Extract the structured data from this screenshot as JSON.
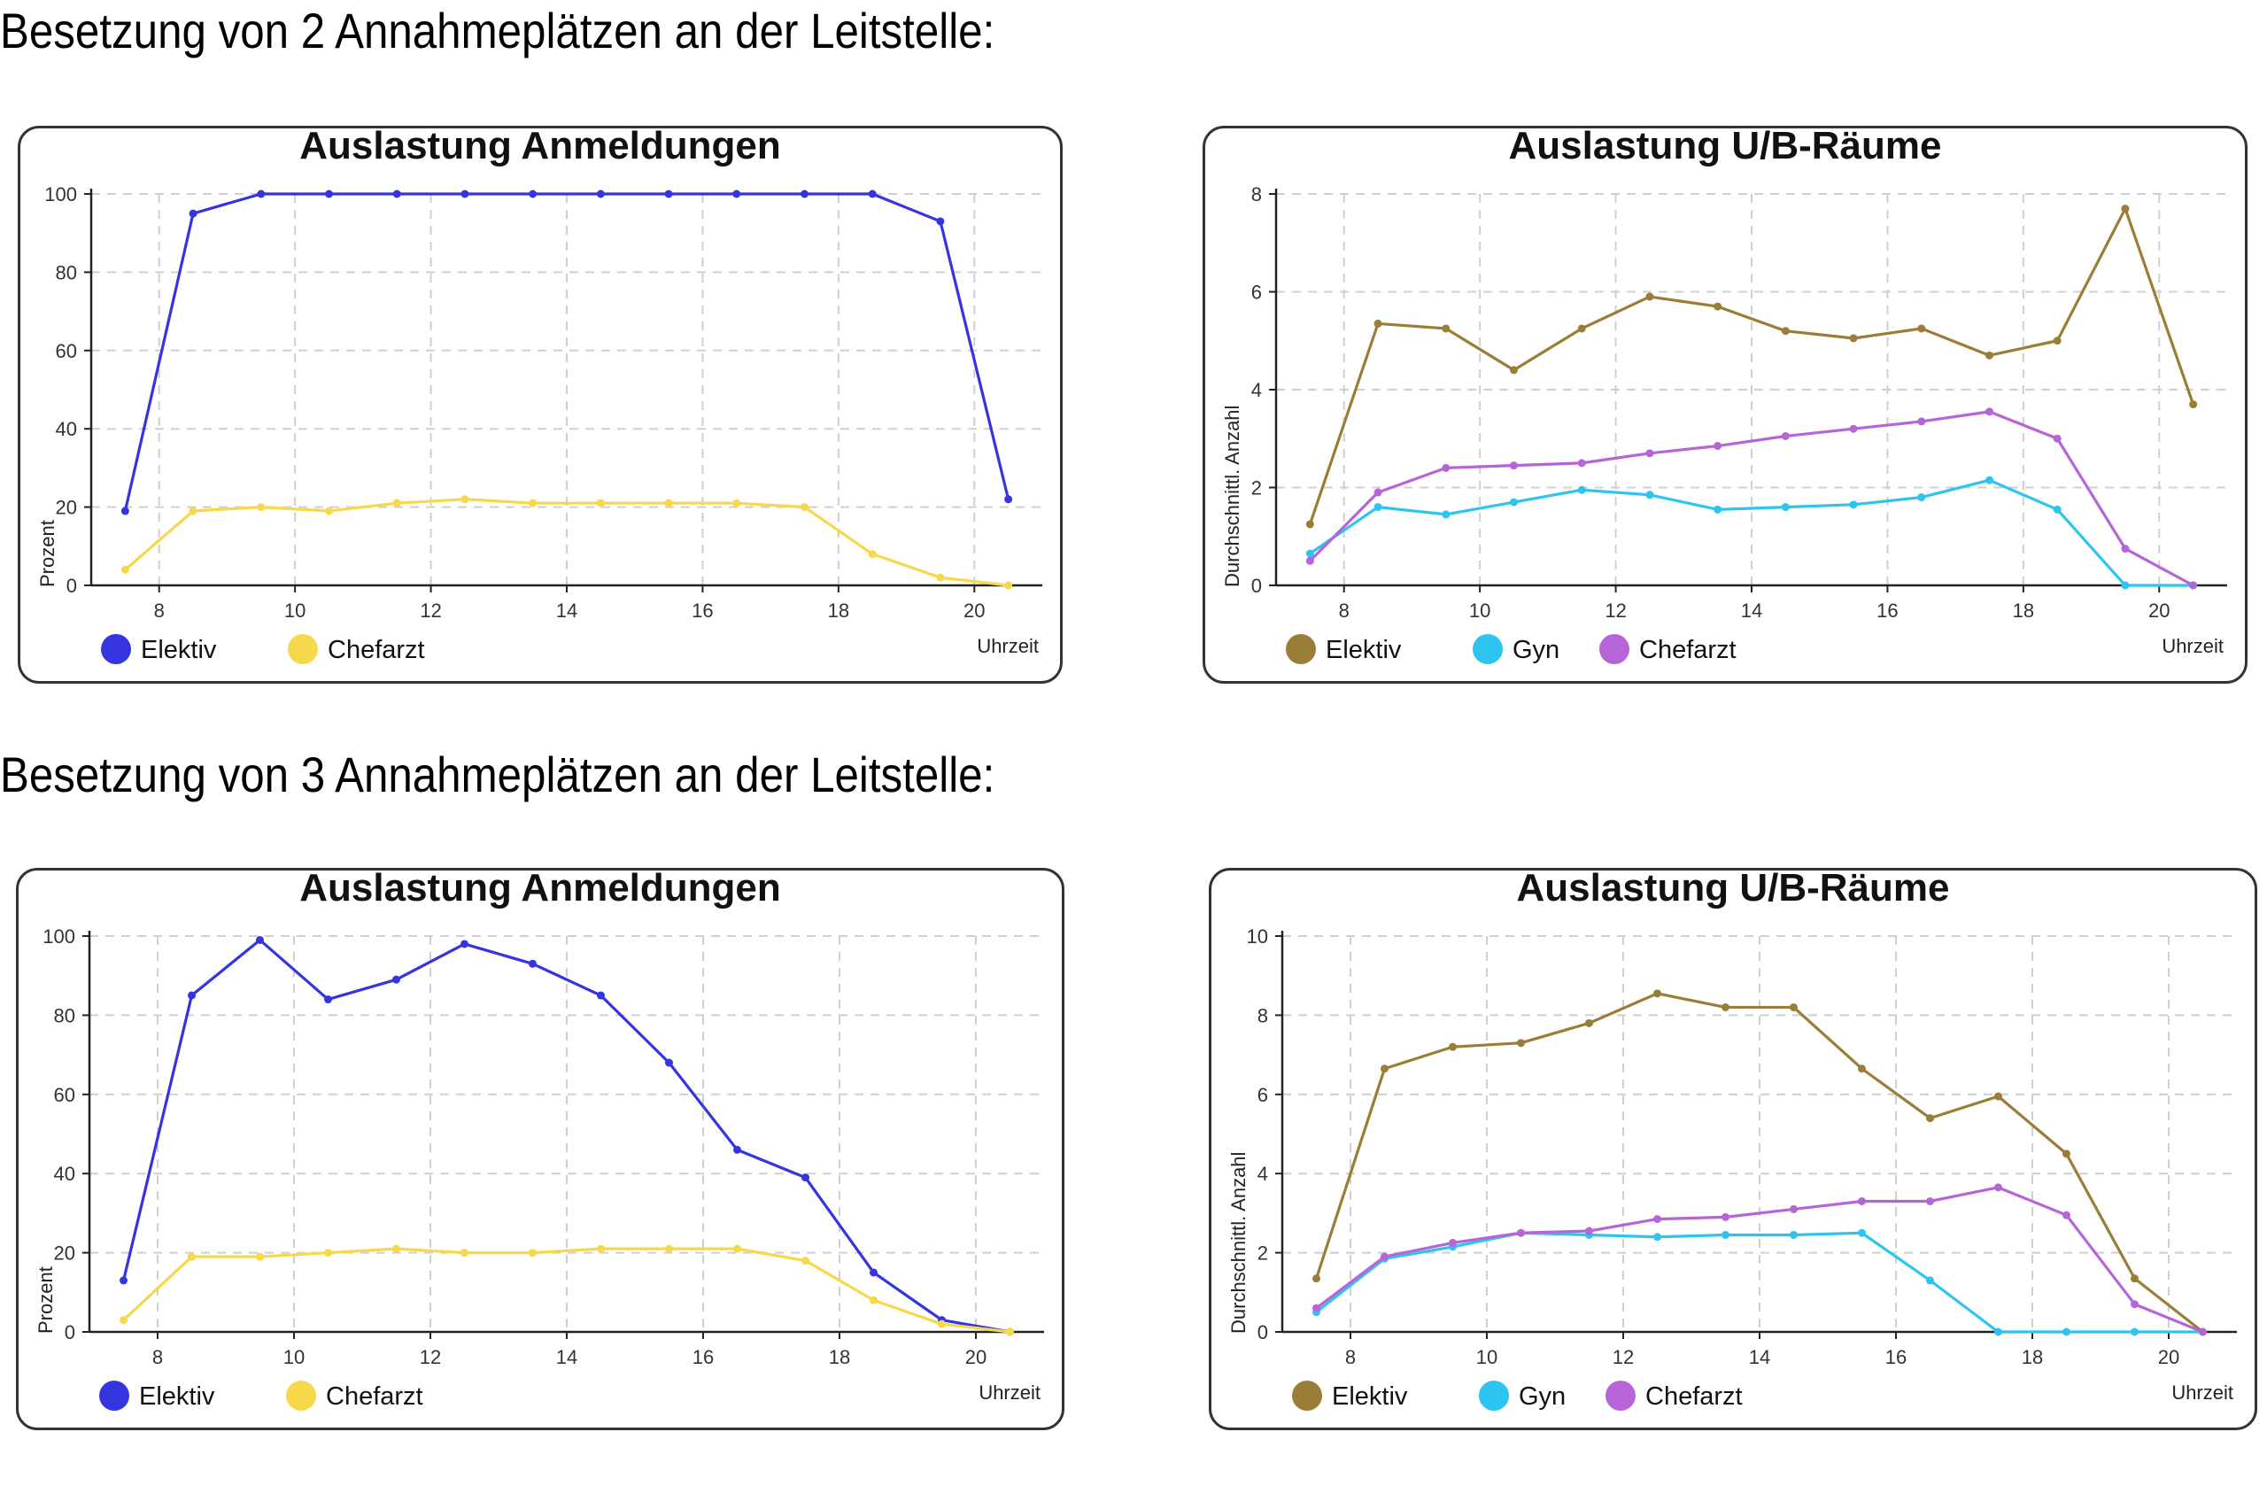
{
  "headings": {
    "h1": "Besetzung von 2 Annahmeplätzen an der Leitstelle:",
    "h2": "Besetzung von 3 Annahmeplätzen an der Leitstelle:"
  },
  "chart_data": [
    {
      "type": "line",
      "title": "Auslastung Anmeldungen",
      "xlabel": "Uhrzeit",
      "ylabel": "Prozent",
      "xlim": [
        7,
        21
      ],
      "ylim": [
        0,
        100
      ],
      "xticks": [
        8,
        10,
        12,
        14,
        16,
        18,
        20
      ],
      "yticks": [
        0,
        20,
        40,
        60,
        80,
        100
      ],
      "grid": true,
      "legend": "bottom-left",
      "series": [
        {
          "name": "Elektiv",
          "color": "#3535e0",
          "x": [
            7.5,
            8.5,
            9.5,
            10.5,
            11.5,
            12.5,
            13.5,
            14.5,
            15.5,
            16.5,
            17.5,
            18.5,
            19.5,
            20.5
          ],
          "y": [
            19,
            95,
            100,
            100,
            100,
            100,
            100,
            100,
            100,
            100,
            100,
            100,
            93,
            22
          ]
        },
        {
          "name": "Chefarzt",
          "color": "#f7d84a",
          "x": [
            7.5,
            8.5,
            9.5,
            10.5,
            11.5,
            12.5,
            13.5,
            14.5,
            15.5,
            16.5,
            17.5,
            18.5,
            19.5,
            20.5
          ],
          "y": [
            4,
            19,
            20,
            19,
            21,
            22,
            21,
            21,
            21,
            21,
            20,
            8,
            2,
            0
          ]
        }
      ]
    },
    {
      "type": "line",
      "title": "Auslastung U/B-Räume",
      "xlabel": "Uhrzeit",
      "ylabel": "Durchschnittl. Anzahl",
      "xlim": [
        7,
        21
      ],
      "ylim": [
        0,
        8
      ],
      "xticks": [
        8,
        10,
        12,
        14,
        16,
        18,
        20
      ],
      "yticks": [
        0,
        2,
        4,
        6,
        8
      ],
      "grid": true,
      "legend": "bottom-left",
      "series": [
        {
          "name": "Elektiv",
          "color": "#9a7d36",
          "x": [
            7.5,
            8.5,
            9.5,
            10.5,
            11.5,
            12.5,
            13.5,
            14.5,
            15.5,
            16.5,
            17.5,
            18.5,
            19.5,
            20.5
          ],
          "y": [
            1.25,
            5.35,
            5.25,
            4.4,
            5.25,
            5.9,
            5.7,
            5.2,
            5.05,
            5.25,
            4.7,
            5.0,
            7.7,
            3.7
          ]
        },
        {
          "name": "Gyn",
          "color": "#2ec4f0",
          "x": [
            7.5,
            8.5,
            9.5,
            10.5,
            11.5,
            12.5,
            13.5,
            14.5,
            15.5,
            16.5,
            17.5,
            18.5,
            19.5,
            20.5
          ],
          "y": [
            0.65,
            1.6,
            1.45,
            1.7,
            1.95,
            1.85,
            1.55,
            1.6,
            1.65,
            1.8,
            2.15,
            1.55,
            0,
            0
          ]
        },
        {
          "name": "Chefarzt",
          "color": "#b565d8",
          "x": [
            7.5,
            8.5,
            9.5,
            10.5,
            11.5,
            12.5,
            13.5,
            14.5,
            15.5,
            16.5,
            17.5,
            18.5,
            19.5,
            20.5
          ],
          "y": [
            0.5,
            1.9,
            2.4,
            2.45,
            2.5,
            2.7,
            2.85,
            3.05,
            3.2,
            3.35,
            3.55,
            3.0,
            0.75,
            0
          ]
        }
      ]
    },
    {
      "type": "line",
      "title": "Auslastung Anmeldungen",
      "xlabel": "Uhrzeit",
      "ylabel": "Prozent",
      "xlim": [
        7,
        21
      ],
      "ylim": [
        0,
        100
      ],
      "xticks": [
        8,
        10,
        12,
        14,
        16,
        18,
        20
      ],
      "yticks": [
        0,
        20,
        40,
        60,
        80,
        100
      ],
      "grid": true,
      "legend": "bottom-left",
      "series": [
        {
          "name": "Elektiv",
          "color": "#3535e0",
          "x": [
            7.5,
            8.5,
            9.5,
            10.5,
            11.5,
            12.5,
            13.5,
            14.5,
            15.5,
            16.5,
            17.5,
            18.5,
            19.5,
            20.5
          ],
          "y": [
            13,
            85,
            99,
            84,
            89,
            98,
            93,
            85,
            68,
            46,
            39,
            15,
            3,
            0
          ]
        },
        {
          "name": "Chefarzt",
          "color": "#f7d84a",
          "x": [
            7.5,
            8.5,
            9.5,
            10.5,
            11.5,
            12.5,
            13.5,
            14.5,
            15.5,
            16.5,
            17.5,
            18.5,
            19.5,
            20.5
          ],
          "y": [
            3,
            19,
            19,
            20,
            21,
            20,
            20,
            21,
            21,
            21,
            18,
            8,
            2,
            0
          ]
        }
      ]
    },
    {
      "type": "line",
      "title": "Auslastung U/B-Räume",
      "xlabel": "Uhrzeit",
      "ylabel": "Durchschnittl. Anzahl",
      "xlim": [
        7,
        21
      ],
      "ylim": [
        0,
        10
      ],
      "xticks": [
        8,
        10,
        12,
        14,
        16,
        18,
        20
      ],
      "yticks": [
        0,
        2,
        4,
        6,
        8,
        10
      ],
      "grid": true,
      "legend": "bottom-left",
      "series": [
        {
          "name": "Elektiv",
          "color": "#9a7d36",
          "x": [
            7.5,
            8.5,
            9.5,
            10.5,
            11.5,
            12.5,
            13.5,
            14.5,
            15.5,
            16.5,
            17.5,
            18.5,
            19.5,
            20.5
          ],
          "y": [
            1.35,
            6.65,
            7.2,
            7.3,
            7.8,
            8.55,
            8.2,
            8.2,
            6.65,
            5.4,
            5.95,
            4.5,
            1.35,
            0
          ]
        },
        {
          "name": "Gyn",
          "color": "#2ec4f0",
          "x": [
            7.5,
            8.5,
            9.5,
            10.5,
            11.5,
            12.5,
            13.5,
            14.5,
            15.5,
            16.5,
            17.5,
            18.5,
            19.5,
            20.5
          ],
          "y": [
            0.5,
            1.85,
            2.15,
            2.5,
            2.45,
            2.4,
            2.45,
            2.45,
            2.5,
            1.3,
            0,
            0,
            0,
            0
          ]
        },
        {
          "name": "Chefarzt",
          "color": "#b565d8",
          "x": [
            7.5,
            8.5,
            9.5,
            10.5,
            11.5,
            12.5,
            13.5,
            14.5,
            15.5,
            16.5,
            17.5,
            18.5,
            19.5,
            20.5
          ],
          "y": [
            0.6,
            1.9,
            2.25,
            2.5,
            2.55,
            2.85,
            2.9,
            3.1,
            3.3,
            3.3,
            3.65,
            2.95,
            0.7,
            0
          ]
        }
      ]
    }
  ]
}
